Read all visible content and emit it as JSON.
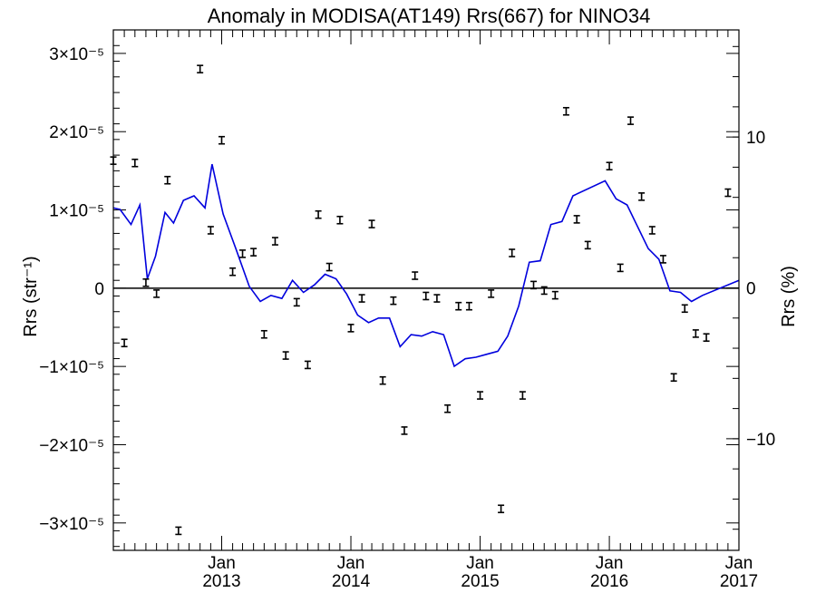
{
  "chart_data": {
    "type": "scatter",
    "title": "Anomaly in MODISA(AT149) Rrs(667) for NINO34",
    "ylabel_left": "Rrs (str⁻¹)",
    "ylabel_right": "Rrs (%)",
    "xlabel": "",
    "x_range": [
      "2012-03-01",
      "2017-01-01"
    ],
    "y_left_range": [
      -3.35e-05,
      3.3e-05
    ],
    "y_right_range": [
      -17.4,
      17.1
    ],
    "y_left_ticks": [
      {
        "value": -3e-05,
        "label": "−3×10⁻⁵"
      },
      {
        "value": -2e-05,
        "label": "−2×10⁻⁵"
      },
      {
        "value": -1e-05,
        "label": "−1×10⁻⁵"
      },
      {
        "value": 0,
        "label": "0"
      },
      {
        "value": 1e-05,
        "label": "1×10⁻⁵"
      },
      {
        "value": 2e-05,
        "label": "2×10⁻⁵"
      },
      {
        "value": 3e-05,
        "label": "3×10⁻⁵"
      }
    ],
    "y_right_ticks": [
      {
        "value": -10,
        "label": "−10"
      },
      {
        "value": 0,
        "label": "0"
      },
      {
        "value": 10,
        "label": "10"
      }
    ],
    "x_ticks": [
      {
        "date": "2013-01-01",
        "label_top": "Jan",
        "label_bottom": "2013"
      },
      {
        "date": "2014-01-01",
        "label_top": "Jan",
        "label_bottom": "2014"
      },
      {
        "date": "2015-01-01",
        "label_top": "Jan",
        "label_bottom": "2015"
      },
      {
        "date": "2016-01-01",
        "label_top": "Jan",
        "label_bottom": "2016"
      },
      {
        "date": "2017-01-01",
        "label_top": "Jan",
        "label_bottom": "2017"
      }
    ],
    "zero_line": true,
    "grid": false,
    "series": [
      {
        "kind": "points_with_error_bars",
        "axis": "left",
        "color": "#000000",
        "points": [
          {
            "x": "2012-03-01",
            "y": 1.63e-05
          },
          {
            "x": "2012-04-01",
            "y": -7e-06
          },
          {
            "x": "2012-05-01",
            "y": 1.6e-05
          },
          {
            "x": "2012-06-01",
            "y": 7e-07
          },
          {
            "x": "2012-07-01",
            "y": -7e-07
          },
          {
            "x": "2012-08-01",
            "y": 1.38e-05
          },
          {
            "x": "2012-09-01",
            "y": -3.1e-05
          },
          {
            "x": "2012-11-01",
            "y": 2.8e-05
          },
          {
            "x": "2012-12-01",
            "y": 7.4e-06
          },
          {
            "x": "2013-01-01",
            "y": 1.89e-05
          },
          {
            "x": "2013-02-01",
            "y": 2.1e-06
          },
          {
            "x": "2013-03-01",
            "y": 4.4e-06
          },
          {
            "x": "2013-04-01",
            "y": 4.6e-06
          },
          {
            "x": "2013-05-01",
            "y": -5.9e-06
          },
          {
            "x": "2013-06-01",
            "y": 6e-06
          },
          {
            "x": "2013-07-01",
            "y": -8.6e-06
          },
          {
            "x": "2013-08-01",
            "y": -1.8e-06
          },
          {
            "x": "2013-09-01",
            "y": -9.8e-06
          },
          {
            "x": "2013-10-01",
            "y": 9.4e-06
          },
          {
            "x": "2013-11-01",
            "y": 2.7e-06
          },
          {
            "x": "2013-12-01",
            "y": 8.7e-06
          },
          {
            "x": "2014-01-01",
            "y": -5.1e-06
          },
          {
            "x": "2014-02-01",
            "y": -1.3e-06
          },
          {
            "x": "2014-03-01",
            "y": 8.2e-06
          },
          {
            "x": "2014-04-01",
            "y": -1.18e-05
          },
          {
            "x": "2014-05-01",
            "y": -1.6e-06
          },
          {
            "x": "2014-06-01",
            "y": -1.82e-05
          },
          {
            "x": "2014-07-01",
            "y": 1.6e-06
          },
          {
            "x": "2014-08-01",
            "y": -1e-06
          },
          {
            "x": "2014-09-01",
            "y": -1.3e-06
          },
          {
            "x": "2014-10-01",
            "y": -1.54e-05
          },
          {
            "x": "2014-11-01",
            "y": -2.3e-06
          },
          {
            "x": "2014-12-01",
            "y": -2.3e-06
          },
          {
            "x": "2015-01-01",
            "y": -1.37e-05
          },
          {
            "x": "2015-02-01",
            "y": -7e-07
          },
          {
            "x": "2015-03-01",
            "y": -2.82e-05
          },
          {
            "x": "2015-04-01",
            "y": 4.5e-06
          },
          {
            "x": "2015-05-01",
            "y": -1.37e-05
          },
          {
            "x": "2015-06-01",
            "y": 4e-07
          },
          {
            "x": "2015-07-01",
            "y": -3e-07
          },
          {
            "x": "2015-08-01",
            "y": -9e-07
          },
          {
            "x": "2015-09-01",
            "y": 2.26e-05
          },
          {
            "x": "2015-10-01",
            "y": 8.8e-06
          },
          {
            "x": "2015-11-01",
            "y": 5.5e-06
          },
          {
            "x": "2016-01-01",
            "y": 1.56e-05
          },
          {
            "x": "2016-02-01",
            "y": 2.6e-06
          },
          {
            "x": "2016-03-01",
            "y": 2.14e-05
          },
          {
            "x": "2016-04-01",
            "y": 1.17e-05
          },
          {
            "x": "2016-05-01",
            "y": 7.4e-06
          },
          {
            "x": "2016-06-01",
            "y": 3.7e-06
          },
          {
            "x": "2016-07-01",
            "y": -1.14e-05
          },
          {
            "x": "2016-08-01",
            "y": -2.6e-06
          },
          {
            "x": "2016-09-01",
            "y": -5.8e-06
          },
          {
            "x": "2016-10-01",
            "y": -6.3e-06
          },
          {
            "x": "2016-12-01",
            "y": 1.22e-05
          }
        ]
      },
      {
        "kind": "line",
        "axis": "right",
        "color": "#0000dd",
        "points": [
          {
            "x": "2012-03-01",
            "y": 5.3
          },
          {
            "x": "2012-03-20",
            "y": 5.2
          },
          {
            "x": "2012-04-20",
            "y": 4.2
          },
          {
            "x": "2012-05-15",
            "y": 5.5
          },
          {
            "x": "2012-06-05",
            "y": 0.6
          },
          {
            "x": "2012-06-28",
            "y": 2.1
          },
          {
            "x": "2012-07-25",
            "y": 5.0
          },
          {
            "x": "2012-08-18",
            "y": 4.3
          },
          {
            "x": "2012-09-15",
            "y": 5.8
          },
          {
            "x": "2012-10-15",
            "y": 6.1
          },
          {
            "x": "2012-11-15",
            "y": 5.3
          },
          {
            "x": "2012-12-05",
            "y": 8.2
          },
          {
            "x": "2013-01-05",
            "y": 4.9
          },
          {
            "x": "2013-02-10",
            "y": 2.6
          },
          {
            "x": "2013-03-20",
            "y": 0.1
          },
          {
            "x": "2013-04-20",
            "y": -0.9
          },
          {
            "x": "2013-05-20",
            "y": -0.5
          },
          {
            "x": "2013-06-20",
            "y": -0.7
          },
          {
            "x": "2013-07-20",
            "y": 0.5
          },
          {
            "x": "2013-08-20",
            "y": -0.3
          },
          {
            "x": "2013-09-20",
            "y": 0.2
          },
          {
            "x": "2013-10-20",
            "y": 0.9
          },
          {
            "x": "2013-11-20",
            "y": 0.6
          },
          {
            "x": "2013-12-20",
            "y": -0.4
          },
          {
            "x": "2014-01-20",
            "y": -1.8
          },
          {
            "x": "2014-02-20",
            "y": -2.3
          },
          {
            "x": "2014-03-20",
            "y": -2.0
          },
          {
            "x": "2014-04-20",
            "y": -2.0
          },
          {
            "x": "2014-05-20",
            "y": -3.9
          },
          {
            "x": "2014-06-20",
            "y": -3.1
          },
          {
            "x": "2014-07-20",
            "y": -3.2
          },
          {
            "x": "2014-08-20",
            "y": -2.9
          },
          {
            "x": "2014-09-20",
            "y": -3.1
          },
          {
            "x": "2014-10-20",
            "y": -5.2
          },
          {
            "x": "2014-11-20",
            "y": -4.7
          },
          {
            "x": "2014-12-20",
            "y": -4.6
          },
          {
            "x": "2015-01-20",
            "y": -4.4
          },
          {
            "x": "2015-02-20",
            "y": -4.2
          },
          {
            "x": "2015-03-20",
            "y": -3.2
          },
          {
            "x": "2015-04-20",
            "y": -1.2
          },
          {
            "x": "2015-05-20",
            "y": 1.7
          },
          {
            "x": "2015-06-20",
            "y": 1.8
          },
          {
            "x": "2015-07-20",
            "y": 4.2
          },
          {
            "x": "2015-08-20",
            "y": 4.4
          },
          {
            "x": "2015-09-20",
            "y": 6.1
          },
          {
            "x": "2015-12-20",
            "y": 7.1
          },
          {
            "x": "2016-01-20",
            "y": 5.9
          },
          {
            "x": "2016-02-20",
            "y": 5.5
          },
          {
            "x": "2016-03-20",
            "y": 4.1
          },
          {
            "x": "2016-04-20",
            "y": 2.6
          },
          {
            "x": "2016-05-20",
            "y": 1.9
          },
          {
            "x": "2016-06-20",
            "y": -0.2
          },
          {
            "x": "2016-07-20",
            "y": -0.3
          },
          {
            "x": "2016-08-20",
            "y": -0.9
          },
          {
            "x": "2016-09-20",
            "y": -0.5
          },
          {
            "x": "2017-01-01",
            "y": 0.5
          }
        ]
      }
    ]
  }
}
